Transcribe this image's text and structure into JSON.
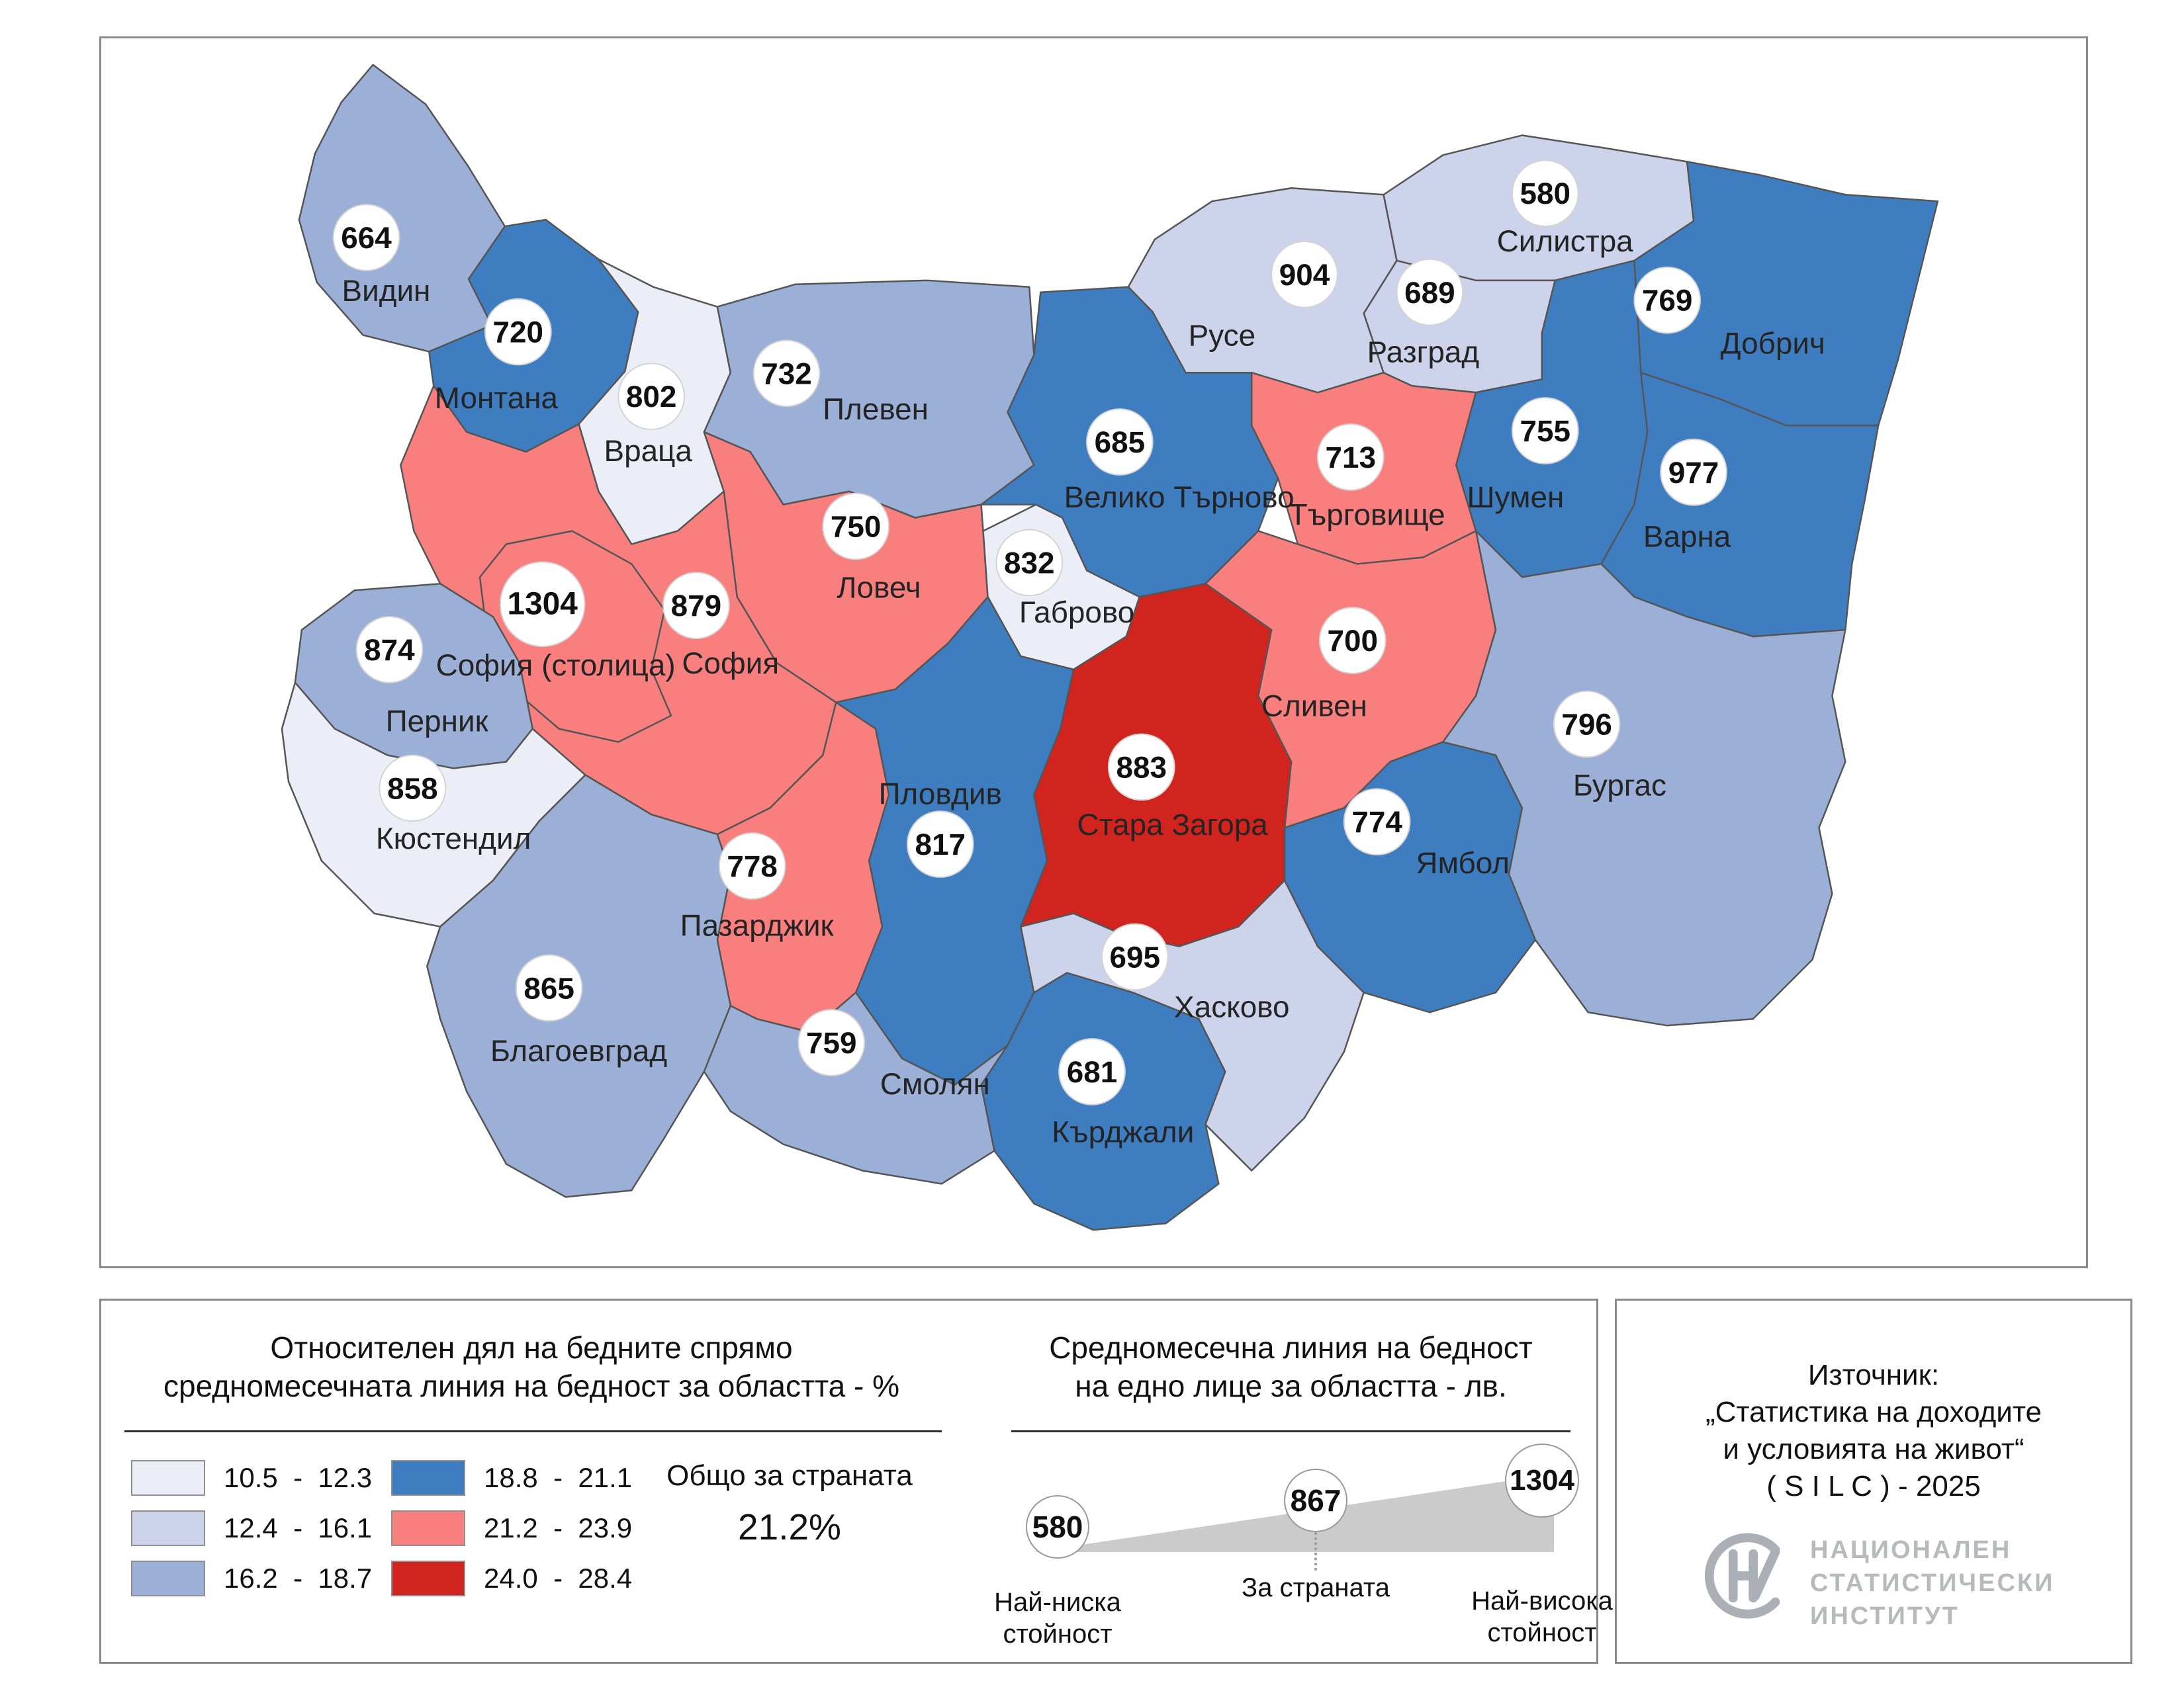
{
  "legend": {
    "title_line1": "Относителен дял на бедните спрямо",
    "title_line2": "средномесечната линия на бедност за областта - %",
    "classes": [
      {
        "label": "10.5  -  12.3",
        "color": "#ebeef7"
      },
      {
        "label": "12.4  -  16.1",
        "color": "#cdd3ea"
      },
      {
        "label": "16.2  -  18.7",
        "color": "#9bafd7"
      },
      {
        "label": "18.8  -  21.1",
        "color": "#3e7ec0"
      },
      {
        "label": "21.2  -  23.9",
        "color": "#f97f7f"
      },
      {
        "label": "24.0  -  28.4",
        "color": "#d1241f"
      }
    ],
    "total_label": "Общо за страната",
    "total_value": "21.2%"
  },
  "poverty_line": {
    "title_line1": "Средномесечна линия на бедност",
    "title_line2": "на едно лице за областта - лв.",
    "min": {
      "value": "580",
      "label_line1": "Най-ниска",
      "label_line2": "стойност"
    },
    "country": {
      "value": "867",
      "label": "За страната"
    },
    "max": {
      "value": "1304",
      "label_line1": "Най-висока",
      "label_line2": "стойност"
    }
  },
  "source": {
    "line1": "Източник:",
    "line2": "„Статистика на доходите",
    "line3": "и условията на живот“",
    "line4": "( S I L C ) - 2025",
    "logo_line1": "НАЦИОНАЛЕН",
    "logo_line2": "СТАТИСТИЧЕСКИ",
    "logo_line3": "ИНСТИТУТ"
  },
  "map": {
    "regions": [
      {
        "id": "vidin",
        "name": "Видин",
        "value": "664",
        "class": 2
      },
      {
        "id": "montana",
        "name": "Монтана",
        "value": "720",
        "class": 3
      },
      {
        "id": "vratsa",
        "name": "Враца",
        "value": "802",
        "class": 0
      },
      {
        "id": "pleven",
        "name": "Плевен",
        "value": "732",
        "class": 2
      },
      {
        "id": "ruse",
        "name": "Русе",
        "value": "904",
        "class": 1
      },
      {
        "id": "silistra",
        "name": "Силистра",
        "value": "580",
        "class": 1
      },
      {
        "id": "razgrad",
        "name": "Разград",
        "value": "689",
        "class": 1
      },
      {
        "id": "dobrich",
        "name": "Добрич",
        "value": "769",
        "class": 3
      },
      {
        "id": "veliko_tarnovo",
        "name": "Велико Търново",
        "value": "685",
        "class": 3
      },
      {
        "id": "targovishte",
        "name": "Търговище",
        "value": "713",
        "class": 4
      },
      {
        "id": "shumen",
        "name": "Шумен",
        "value": "755",
        "class": 3
      },
      {
        "id": "varna",
        "name": "Варна",
        "value": "977",
        "class": 3
      },
      {
        "id": "lovech",
        "name": "Ловеч",
        "value": "750",
        "class": 4
      },
      {
        "id": "gabrovo",
        "name": "Габрово",
        "value": "832",
        "class": 0
      },
      {
        "id": "sofia_obl",
        "name": "София",
        "value": "879",
        "class": 4
      },
      {
        "id": "sofia_city",
        "name": "София (столица)",
        "value": "1304",
        "class": 4
      },
      {
        "id": "pernik",
        "name": "Перник",
        "value": "874",
        "class": 2
      },
      {
        "id": "kyustendil",
        "name": "Кюстендил",
        "value": "858",
        "class": 0
      },
      {
        "id": "plovdiv",
        "name": "Пловдив",
        "value": "817",
        "class": 3
      },
      {
        "id": "sliven",
        "name": "Сливен",
        "value": "700",
        "class": 4
      },
      {
        "id": "stara_zagora",
        "name": "Стара Загора",
        "value": "883",
        "class": 5
      },
      {
        "id": "yambol",
        "name": "Ямбол",
        "value": "774",
        "class": 3
      },
      {
        "id": "burgas",
        "name": "Бургас",
        "value": "796",
        "class": 2
      },
      {
        "id": "pazardzhik",
        "name": "Пазарджик",
        "value": "778",
        "class": 4
      },
      {
        "id": "blagoevgrad",
        "name": "Благоевград",
        "value": "865",
        "class": 2
      },
      {
        "id": "smolyan",
        "name": "Смолян",
        "value": "759",
        "class": 2
      },
      {
        "id": "kardzhali",
        "name": "Кърджали",
        "value": "681",
        "class": 3
      },
      {
        "id": "haskovo",
        "name": "Хасково",
        "value": "695",
        "class": 1
      }
    ]
  }
}
